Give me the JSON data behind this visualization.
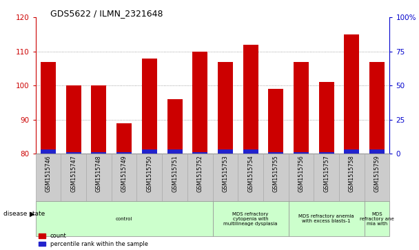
{
  "title": "GDS5622 / ILMN_2321648",
  "samples": [
    "GSM1515746",
    "GSM1515747",
    "GSM1515748",
    "GSM1515749",
    "GSM1515750",
    "GSM1515751",
    "GSM1515752",
    "GSM1515753",
    "GSM1515754",
    "GSM1515755",
    "GSM1515756",
    "GSM1515757",
    "GSM1515758",
    "GSM1515759"
  ],
  "count_values": [
    107,
    100,
    100,
    89,
    108,
    96,
    110,
    107,
    112,
    99,
    107,
    101,
    115,
    107
  ],
  "percentile_values": [
    3,
    1,
    1,
    1,
    3,
    3,
    1,
    3,
    3,
    1,
    1,
    1,
    3,
    3
  ],
  "ylim_left": [
    80,
    120
  ],
  "ylim_right": [
    0,
    100
  ],
  "yticks_left": [
    80,
    90,
    100,
    110,
    120
  ],
  "yticks_right": [
    0,
    25,
    50,
    75,
    100
  ],
  "bar_color_count": "#cc0000",
  "bar_color_pct": "#2222cc",
  "grid_color": "#888888",
  "axis_left_color": "#cc0000",
  "axis_right_color": "#0000cc",
  "disease_groups": [
    {
      "label": "control",
      "start": 0,
      "end": 7,
      "color": "#ccffcc"
    },
    {
      "label": "MDS refractory\ncytopenia with\nmultilineage dysplasia",
      "start": 7,
      "end": 10,
      "color": "#ccffcc"
    },
    {
      "label": "MDS refractory anemia\nwith excess blasts-1",
      "start": 10,
      "end": 13,
      "color": "#ccffcc"
    },
    {
      "label": "MDS\nrefractory ane\nmia with",
      "start": 13,
      "end": 14,
      "color": "#ccffcc"
    }
  ],
  "bg_color": "#cccccc",
  "plot_bg": "#ffffff"
}
